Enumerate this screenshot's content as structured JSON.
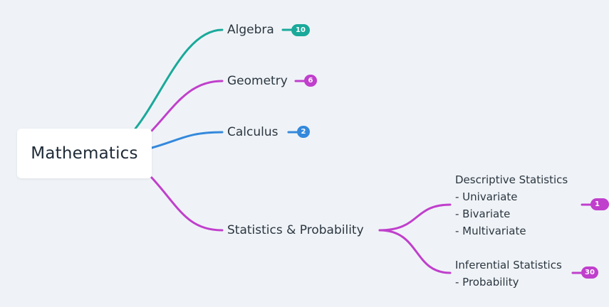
{
  "root": {
    "label": "Mathematics"
  },
  "colors": {
    "algebra": "#1aa99a",
    "geometry": "#c03fcc",
    "calculus": "#3489dc",
    "statistics": "#c03fcc"
  },
  "topics": {
    "algebra": {
      "label": "Algebra",
      "count": "10"
    },
    "geometry": {
      "label": "Geometry",
      "count": "6"
    },
    "calculus": {
      "label": "Calculus",
      "count": "2"
    },
    "statistics": {
      "label": "Statistics & Probability"
    }
  },
  "subtopics": {
    "descriptive": {
      "lines": [
        "Descriptive Statistics",
        "- Univariate",
        "- Bivariate",
        "- Multivariate"
      ],
      "count": "1"
    },
    "inferential": {
      "lines": [
        "Inferential Statistics",
        "- Probability"
      ],
      "count": "30"
    }
  }
}
